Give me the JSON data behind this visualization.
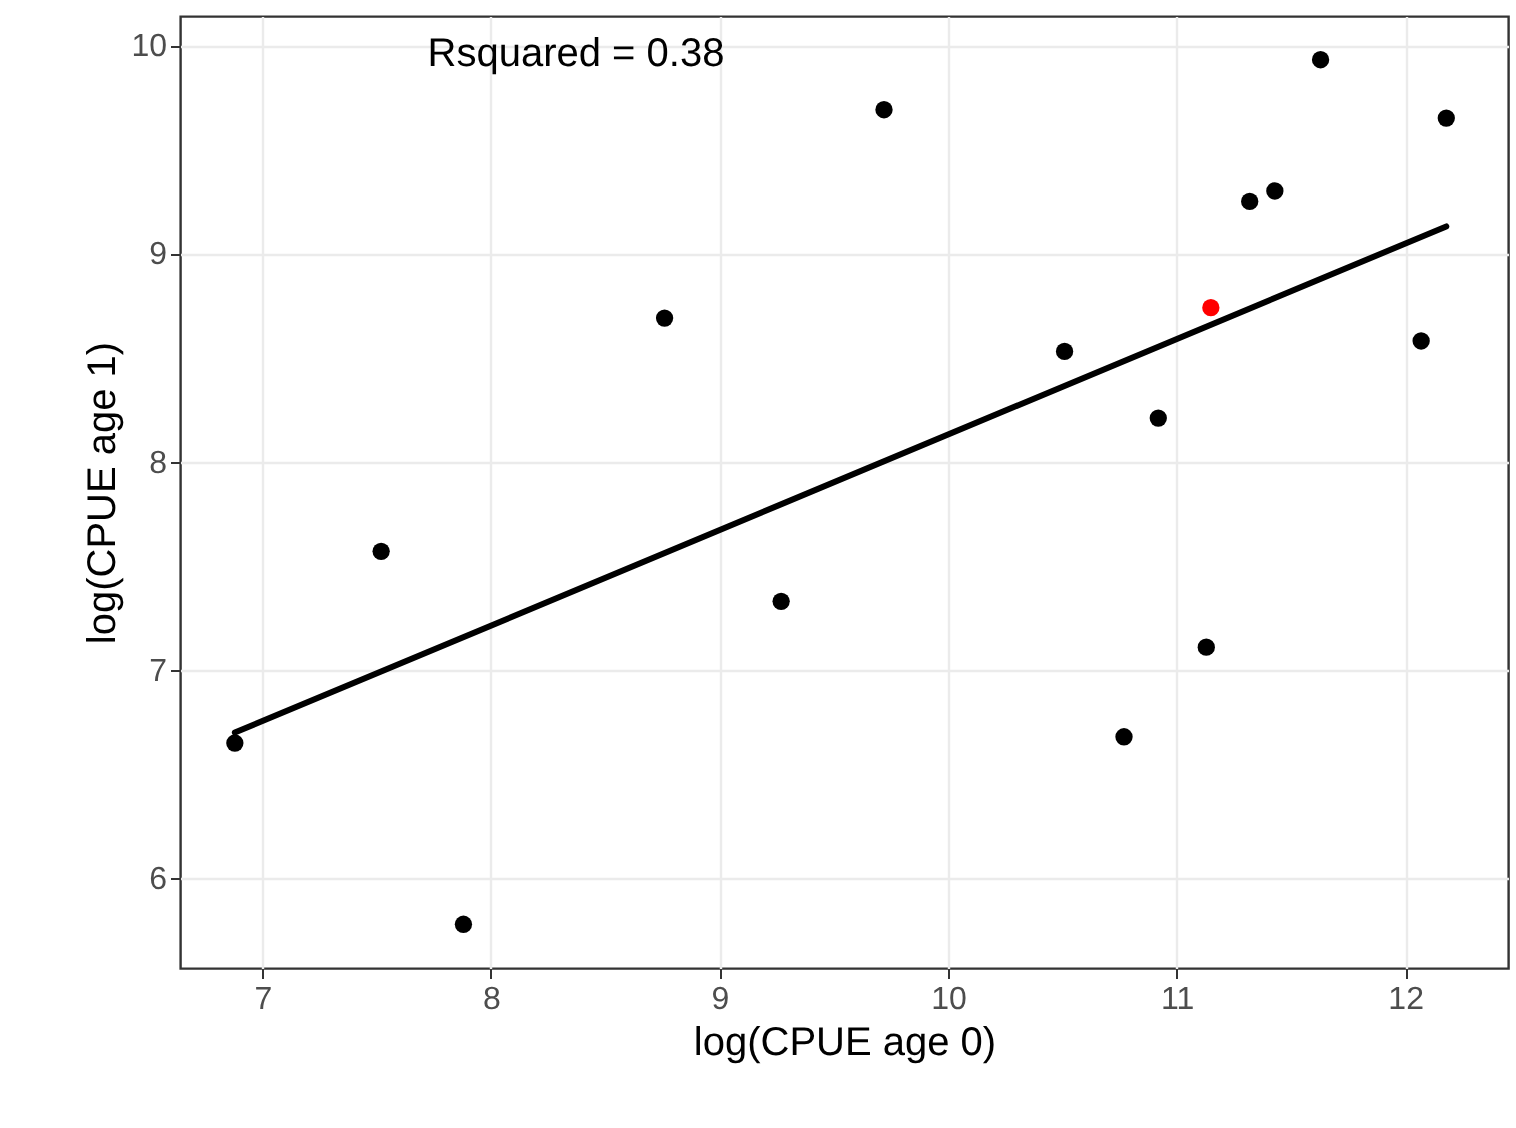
{
  "chart_data": {
    "type": "scatter",
    "xlabel": "log(CPUE age 0)",
    "ylabel": "log(CPUE age 1)",
    "annotations": [
      "Rsquared = 0.38"
    ],
    "xlim": [
      6.64,
      12.45
    ],
    "ylim": [
      5.57,
      10.14
    ],
    "xticks": [
      7,
      8,
      9,
      10,
      11,
      12
    ],
    "yticks": [
      6,
      7,
      8,
      9,
      10
    ],
    "grid": true,
    "marker": "circle",
    "series": [
      {
        "color": "#000000",
        "x": [
          6.88,
          7.52,
          7.88,
          8.76,
          9.27,
          9.72,
          10.51,
          10.92,
          10.77,
          11.13,
          11.32,
          11.43,
          11.63,
          12.07,
          12.18
        ],
        "values": [
          6.65,
          7.57,
          5.78,
          8.69,
          7.33,
          9.69,
          8.53,
          8.21,
          6.68,
          7.11,
          9.25,
          9.3,
          9.93,
          8.58,
          9.65
        ]
      },
      {
        "color": "#ff0000",
        "x": [
          11.15
        ],
        "values": [
          8.74
        ]
      },
      {
        "type": "line",
        "color": "#000000",
        "x": [
          6.88,
          12.18
        ],
        "values": [
          6.7,
          9.13
        ],
        "line_style": "solid",
        "marker": "none"
      }
    ]
  }
}
